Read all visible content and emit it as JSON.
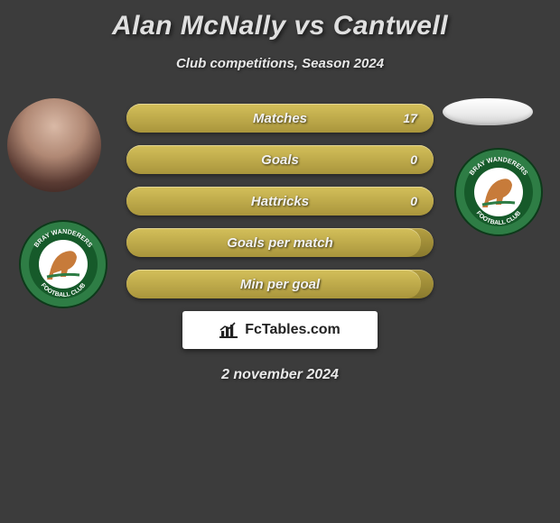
{
  "title": "Alan McNally vs Cantwell",
  "subtitle": "Club competitions, Season 2024",
  "date": "2 november 2024",
  "brand": {
    "text": "FcTables.com"
  },
  "colors": {
    "background": "#3c3c3c",
    "bar_bg_top": "#b5a042",
    "bar_bg_bottom": "#8a7a2e",
    "bar_fill_top": "#d4c05a",
    "bar_fill_bottom": "#a9953c",
    "text": "#f2f2f2",
    "crest_outer": "#2e7d45",
    "crest_mid": "#165a2a",
    "crest_inner": "#ffffff",
    "crest_horse": "#c77b3a"
  },
  "stats": [
    {
      "label": "Matches",
      "value": "17",
      "fill_pct": 100
    },
    {
      "label": "Goals",
      "value": "0",
      "fill_pct": 100
    },
    {
      "label": "Hattricks",
      "value": "0",
      "fill_pct": 100
    },
    {
      "label": "Goals per match",
      "value": "",
      "fill_pct": 96
    },
    {
      "label": "Min per goal",
      "value": "",
      "fill_pct": 96
    }
  ],
  "crest_text_top": "BRAY WANDERERS",
  "crest_text_bottom": "FOOTBALL CLUB"
}
